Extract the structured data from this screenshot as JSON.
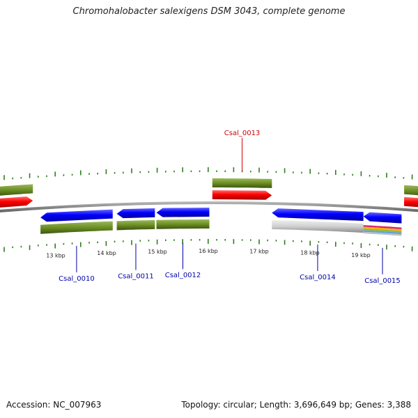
{
  "title": "Chromohalobacter salexigens DSM 3043, complete genome",
  "footer": {
    "accession": "Accession: NC_007963",
    "topology": "Topology: circular; Length: 3,696,649 bp; Genes: 3,388"
  },
  "colors": {
    "forward_gene": "#ff0000",
    "reverse_gene": "#0000ff",
    "cds_band": "#6b8e23",
    "rna_band": "#c8c8c8",
    "backbone": "#888888",
    "tick": "#2f7d1f",
    "label_forward": "#cc0000",
    "label_reverse": "#0000aa"
  },
  "ticks": [
    {
      "kbp": 13,
      "label": "13 kbp"
    },
    {
      "kbp": 14,
      "label": "14 kbp"
    },
    {
      "kbp": 15,
      "label": "15 kbp"
    },
    {
      "kbp": 16,
      "label": "16 kbp"
    },
    {
      "kbp": 17,
      "label": "17 kbp"
    },
    {
      "kbp": 18,
      "label": "18 kbp"
    },
    {
      "kbp": 19,
      "label": "19 kbp"
    }
  ],
  "genes": [
    {
      "name": "",
      "strand": "+",
      "start_kbp": 11.8,
      "end_kbp": 12.55,
      "labeled": false,
      "band": "cds"
    },
    {
      "name": "Csal_0010",
      "strand": "-",
      "start_kbp": 12.7,
      "end_kbp": 14.12,
      "labeled": true,
      "band": "cds"
    },
    {
      "name": "Csal_0011",
      "strand": "-",
      "start_kbp": 14.2,
      "end_kbp": 14.95,
      "labeled": true,
      "band": "cds"
    },
    {
      "name": "Csal_0012",
      "strand": "-",
      "start_kbp": 14.98,
      "end_kbp": 16.02,
      "labeled": true,
      "band": "cds"
    },
    {
      "name": "Csal_0013",
      "strand": "+",
      "start_kbp": 16.08,
      "end_kbp": 17.25,
      "labeled": true,
      "band": "cds"
    },
    {
      "name": "Csal_0014",
      "strand": "-",
      "start_kbp": 17.25,
      "end_kbp": 19.05,
      "labeled": true,
      "band": "rna"
    },
    {
      "name": "Csal_0015",
      "strand": "-",
      "start_kbp": 19.05,
      "end_kbp": 19.8,
      "labeled": true,
      "band": "multi"
    },
    {
      "name": "",
      "strand": "+",
      "start_kbp": 19.85,
      "end_kbp": 20.5,
      "labeled": false,
      "band": "cds"
    }
  ]
}
